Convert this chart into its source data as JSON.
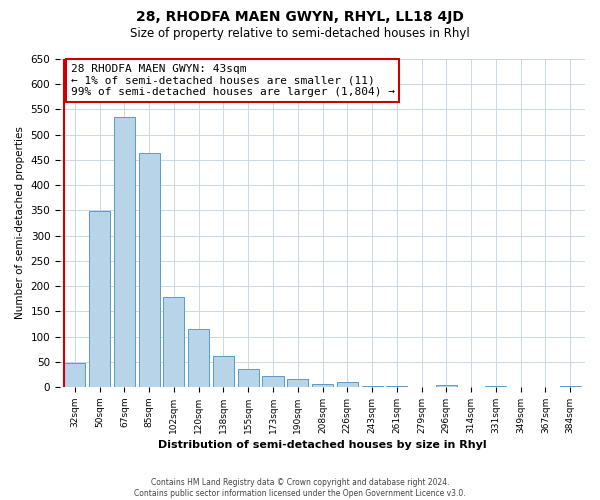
{
  "title": "28, RHODFA MAEN GWYN, RHYL, LL18 4JD",
  "subtitle": "Size of property relative to semi-detached houses in Rhyl",
  "xlabel": "Distribution of semi-detached houses by size in Rhyl",
  "ylabel": "Number of semi-detached properties",
  "bin_labels": [
    "32sqm",
    "50sqm",
    "67sqm",
    "85sqm",
    "102sqm",
    "120sqm",
    "138sqm",
    "155sqm",
    "173sqm",
    "190sqm",
    "208sqm",
    "226sqm",
    "243sqm",
    "261sqm",
    "279sqm",
    "296sqm",
    "314sqm",
    "331sqm",
    "349sqm",
    "367sqm",
    "384sqm"
  ],
  "bar_values": [
    47,
    348,
    535,
    463,
    178,
    115,
    61,
    35,
    22,
    15,
    5,
    10,
    2,
    2,
    0,
    3,
    0,
    2,
    0,
    0,
    2
  ],
  "bar_color": "#b8d4e8",
  "bar_edge_color": "#5a9cc5",
  "ylim": [
    0,
    650
  ],
  "yticks": [
    0,
    50,
    100,
    150,
    200,
    250,
    300,
    350,
    400,
    450,
    500,
    550,
    600,
    650
  ],
  "annotation_title": "28 RHODFA MAEN GWYN: 43sqm",
  "annotation_line1": "← 1% of semi-detached houses are smaller (11)",
  "annotation_line2": "99% of semi-detached houses are larger (1,804) →",
  "footer_line1": "Contains HM Land Registry data © Crown copyright and database right 2024.",
  "footer_line2": "Contains public sector information licensed under the Open Government Licence v3.0.",
  "background_color": "#ffffff",
  "grid_color": "#c8d8e8",
  "red_color": "#cc0000"
}
